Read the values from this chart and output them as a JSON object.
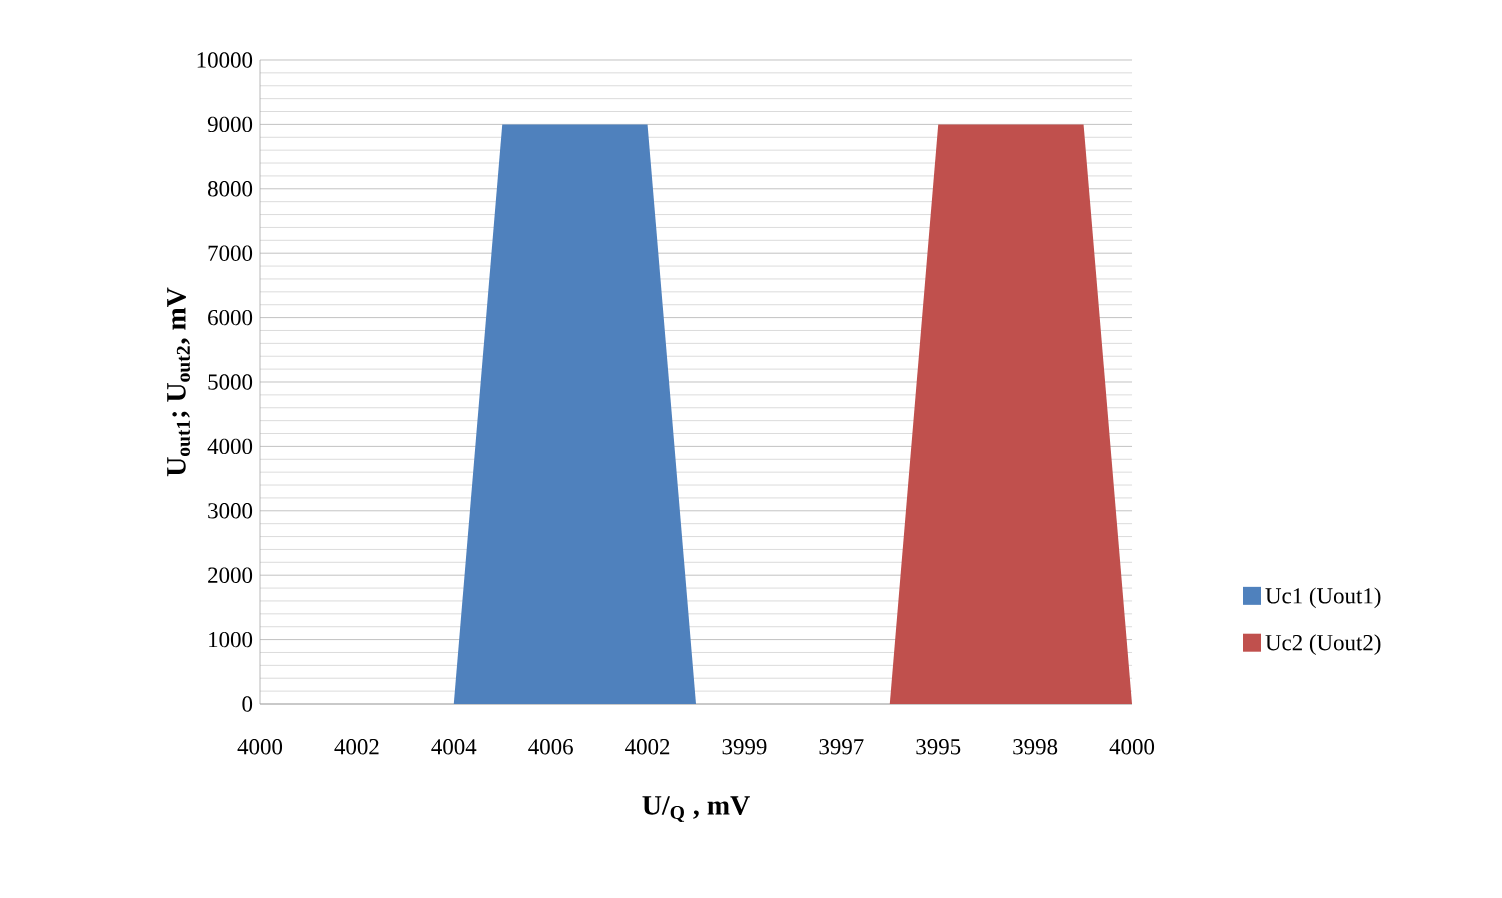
{
  "chart_data": {
    "type": "area",
    "xlabel": "U/$_{Q}$ , mV",
    "ylabel": "U$_{out1}$; U$_{out2}$, mV",
    "categories": [
      "4000",
      null,
      "4002",
      null,
      "4004",
      null,
      "4006",
      null,
      "4002",
      null,
      "3999",
      null,
      "3997",
      null,
      "3995",
      null,
      "3998",
      null,
      "4000"
    ],
    "series": [
      {
        "name": "Uc1 (Uout1)",
        "color": "#4f81bd",
        "values": [
          null,
          null,
          null,
          null,
          0,
          9000,
          9000,
          9000,
          9000,
          0,
          null,
          null,
          null,
          null,
          null,
          null,
          null,
          null,
          null
        ]
      },
      {
        "name": "Uc2 (Uout2)",
        "color": "#c0504d",
        "values": [
          null,
          null,
          null,
          null,
          null,
          null,
          null,
          null,
          null,
          null,
          null,
          null,
          null,
          0,
          9000,
          9000,
          9000,
          9000,
          0
        ]
      }
    ],
    "ylim": [
      0,
      10000
    ],
    "yticks": [
      0,
      1000,
      2000,
      3000,
      4000,
      5000,
      6000,
      7000,
      8000,
      9000,
      10000
    ],
    "grid": "y",
    "legend": "right"
  }
}
